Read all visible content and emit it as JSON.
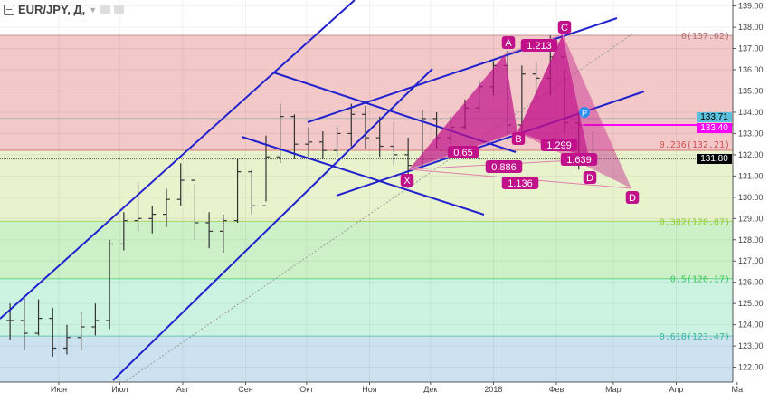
{
  "header": {
    "symbol": "EUR/JPY, Д,",
    "icons": [
      "collapse-icon",
      "chevron-down-icon",
      "eye-icon",
      "gear-icon"
    ]
  },
  "chart_data": {
    "type": "ohlc",
    "title": "EUR/JPY, Д,",
    "ylim": [
      121.5,
      139.4
    ],
    "y_ticks": [
      "122.00",
      "123.00",
      "124.00",
      "125.00",
      "126.00",
      "127.00",
      "128.00",
      "129.00",
      "130.00",
      "131.00",
      "132.00",
      "133.00",
      "134.00",
      "135.00",
      "136.00",
      "137.00",
      "138.00",
      "139.00"
    ],
    "x_ticks": [
      {
        "label": "Июн",
        "date": "2017-06-01"
      },
      {
        "label": "Июл",
        "date": "2017-07-01"
      },
      {
        "label": "Авг",
        "date": "2017-08-01"
      },
      {
        "label": "Сен",
        "date": "2017-09-01"
      },
      {
        "label": "Окт",
        "date": "2017-10-01"
      },
      {
        "label": "Ноя",
        "date": "2017-11-01"
      },
      {
        "label": "Дек",
        "date": "2017-12-01"
      },
      {
        "label": "2018",
        "date": "2018-01-01"
      },
      {
        "label": "Фев",
        "date": "2018-02-01"
      },
      {
        "label": "Мар",
        "date": "2018-03-01"
      },
      {
        "label": "Апр",
        "date": "2018-04-01"
      },
      {
        "label": "Ма",
        "date": "2018-05-01"
      }
    ],
    "bars": [
      [
        "2017-05-08",
        125.0,
        123.3,
        124.2
      ],
      [
        "2017-05-15",
        125.3,
        122.8,
        123.6
      ],
      [
        "2017-05-22",
        125.2,
        123.5,
        124.3
      ],
      [
        "2017-05-29",
        124.8,
        122.5,
        122.9
      ],
      [
        "2017-06-05",
        124.0,
        122.6,
        123.4
      ],
      [
        "2017-06-12",
        124.6,
        122.8,
        123.9
      ],
      [
        "2017-06-19",
        125.0,
        123.5,
        124.2
      ],
      [
        "2017-06-26",
        128.0,
        123.8,
        127.8
      ],
      [
        "2017-07-03",
        129.3,
        127.5,
        128.9
      ],
      [
        "2017-07-10",
        130.7,
        128.4,
        129.0
      ],
      [
        "2017-07-17",
        129.6,
        128.3,
        129.2
      ],
      [
        "2017-07-24",
        130.4,
        128.6,
        129.9
      ],
      [
        "2017-07-31",
        131.6,
        129.6,
        130.8
      ],
      [
        "2017-08-07",
        130.6,
        128.0,
        128.8
      ],
      [
        "2017-08-14",
        129.3,
        127.6,
        128.4
      ],
      [
        "2017-08-21",
        129.2,
        127.4,
        128.9
      ],
      [
        "2017-08-28",
        131.8,
        128.8,
        131.2
      ],
      [
        "2017-09-04",
        131.3,
        129.2,
        129.6
      ],
      [
        "2017-09-11",
        132.9,
        129.8,
        131.9
      ],
      [
        "2017-09-18",
        134.4,
        131.6,
        133.8
      ],
      [
        "2017-09-25",
        133.9,
        131.8,
        132.5
      ],
      [
        "2017-10-02",
        133.3,
        131.9,
        132.6
      ],
      [
        "2017-10-09",
        133.1,
        131.8,
        132.2
      ],
      [
        "2017-10-16",
        133.4,
        131.9,
        133.0
      ],
      [
        "2017-10-23",
        134.4,
        132.4,
        133.9
      ],
      [
        "2017-10-30",
        134.3,
        132.3,
        132.8
      ],
      [
        "2017-11-06",
        133.8,
        131.9,
        132.4
      ],
      [
        "2017-11-13",
        133.5,
        131.5,
        132.0
      ],
      [
        "2017-11-20",
        132.8,
        131.0,
        131.5
      ],
      [
        "2017-11-27",
        134.1,
        131.4,
        133.7
      ],
      [
        "2017-12-04",
        134.0,
        132.3,
        132.8
      ],
      [
        "2017-12-11",
        133.8,
        132.5,
        133.3
      ],
      [
        "2017-12-18",
        134.6,
        133.2,
        134.2
      ],
      [
        "2017-12-25",
        135.5,
        134.0,
        135.2
      ],
      [
        "2018-01-01",
        136.4,
        134.8,
        136.2
      ],
      [
        "2018-01-08",
        136.9,
        133.0,
        133.4
      ],
      [
        "2018-01-15",
        136.2,
        133.1,
        135.8
      ],
      [
        "2018-01-22",
        136.4,
        134.5,
        135.6
      ],
      [
        "2018-01-29",
        137.6,
        134.8,
        136.6
      ],
      [
        "2018-02-05",
        136.0,
        133.0,
        133.5
      ],
      [
        "2018-02-12",
        134.0,
        131.3,
        132.0
      ],
      [
        "2018-02-19",
        133.1,
        131.5,
        131.8
      ]
    ],
    "fib_levels": [
      {
        "label": "0(137.62)",
        "price": 137.62,
        "color": "#b07070",
        "fill": "#f2c8c8"
      },
      {
        "label": "0.236(132.21)",
        "price": 132.21,
        "color": "#d05050",
        "fill": "#e8f2cc"
      },
      {
        "label": "0.382(128.87)",
        "price": 128.87,
        "color": "#8ccc3c",
        "fill": "#cdf0c8"
      },
      {
        "label": "0.5(126.17)",
        "price": 126.17,
        "color": "#3cc85c",
        "fill": "#ccf2e2"
      },
      {
        "label": "0.618(123.47)",
        "price": 123.47,
        "color": "#3cb8a0",
        "fill": "#cce2f0"
      }
    ],
    "price_tags": [
      {
        "label": "133.71",
        "price": 133.71,
        "bg": "#5bc0de",
        "fg": "#000"
      },
      {
        "label": "133.40",
        "price": 133.4,
        "bg": "#ff00ff",
        "fg": "#fff"
      },
      {
        "label": "131.80",
        "price": 131.8,
        "bg": "#000000",
        "fg": "#fff"
      }
    ],
    "pattern_points": [
      "X",
      "A",
      "B",
      "C",
      "D",
      "D",
      "P"
    ],
    "pattern_ratios": [
      "1.213",
      "0.65",
      "1.299",
      "0.886",
      "1.639",
      "1.136"
    ],
    "colors": {
      "trendline": "#2222cc",
      "pattern": "#c0108a",
      "bars": "#333333",
      "last_price": "#000000"
    }
  }
}
